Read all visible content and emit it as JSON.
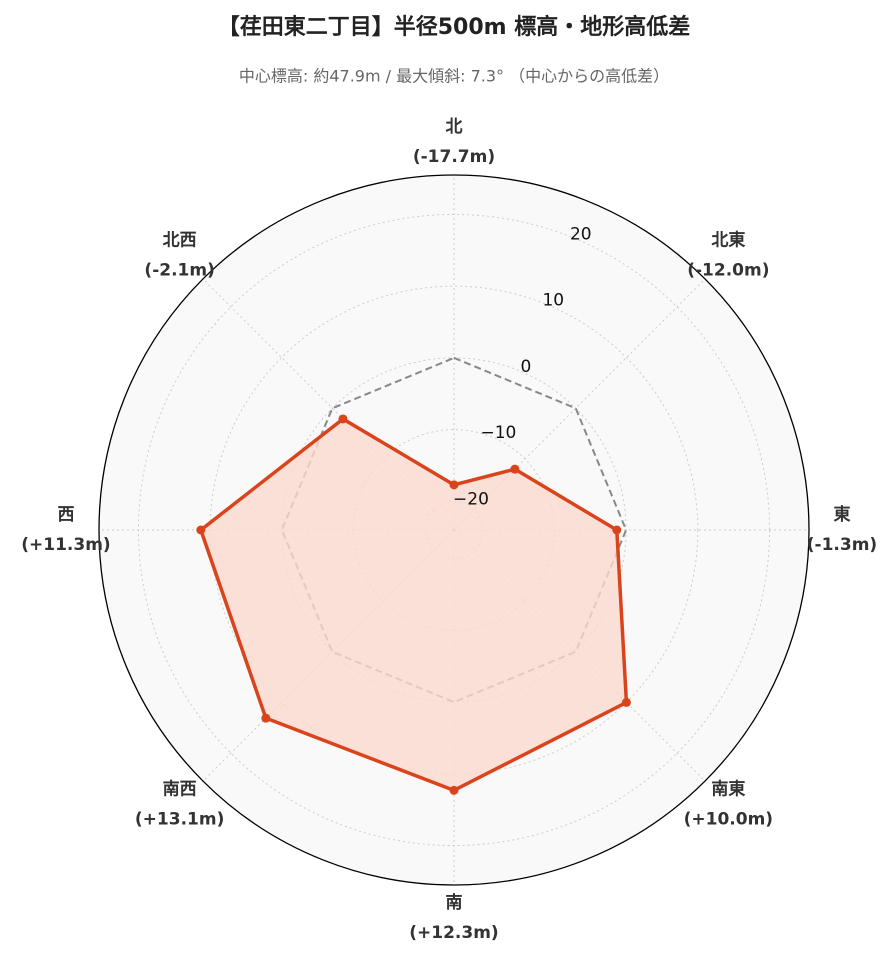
{
  "chart_data": {
    "type": "radar",
    "title": "【荏田東二丁目】半径500m 標高・地形高低差",
    "subtitle": "中心標高: 約47.9m / 最大傾斜: 7.3° （中心からの高低差）",
    "categories": [
      "北",
      "北東",
      "東",
      "南東",
      "南",
      "南西",
      "西",
      "北西"
    ],
    "series": [
      {
        "color": "#d9441c",
        "fill": "#fbd9cf",
        "values": [
          -17.7,
          -12.0,
          -1.3,
          10.0,
          12.3,
          13.1,
          11.3,
          -2.1
        ],
        "value_labels": [
          "(-17.7m)",
          "(-12.0m)",
          "(-1.3m)",
          "(+10.0m)",
          "(+12.3m)",
          "(+13.1m)",
          "(+11.3m)",
          "(-2.1m)"
        ]
      }
    ],
    "reference_line": 0,
    "ylim": [
      -24,
      25.5
    ],
    "yticks": [
      {
        "value": -20,
        "label": "−20"
      },
      {
        "value": -10,
        "label": "−10"
      },
      0,
      10,
      20
    ],
    "grid": true
  }
}
